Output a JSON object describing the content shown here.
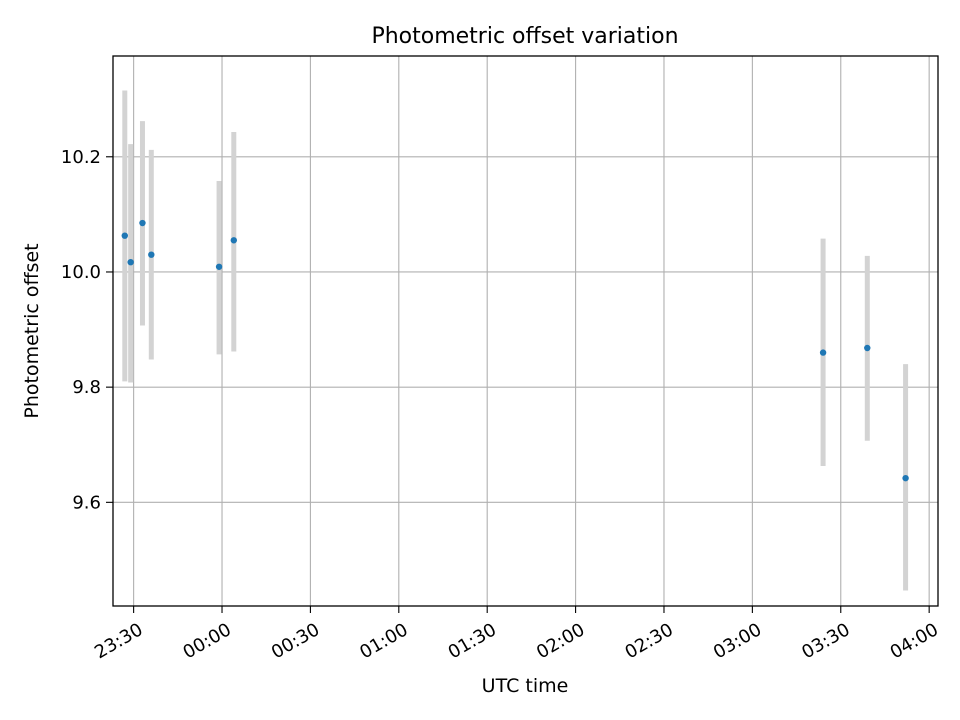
{
  "chart_data": {
    "type": "scatter",
    "title": "Photometric offset variation",
    "xlabel": "UTC time",
    "ylabel": "Photometric offset",
    "x_unit": "time of day (minutes after 23:30 shown as clock labels)",
    "xlim": [
      "23:23",
      "04:03"
    ],
    "ylim": [
      9.42,
      10.375
    ],
    "x_ticks": [
      "23:30",
      "00:00",
      "00:30",
      "01:00",
      "01:30",
      "02:00",
      "02:30",
      "03:00",
      "03:30",
      "04:00"
    ],
    "y_ticks": [
      "9.6",
      "9.8",
      "10.0",
      "10.2"
    ],
    "y_tick_values": [
      9.6,
      9.8,
      10.0,
      10.2
    ],
    "grid": true,
    "series": [
      {
        "marker_color": "#1f77b4",
        "errorbar_color": "#d3d3d3",
        "points": [
          {
            "time": "23:27",
            "y": 10.063,
            "low": 9.81,
            "high": 10.315
          },
          {
            "time": "23:29",
            "y": 10.017,
            "low": 9.808,
            "high": 10.222
          },
          {
            "time": "23:33",
            "y": 10.085,
            "low": 9.907,
            "high": 10.262
          },
          {
            "time": "23:36",
            "y": 10.03,
            "low": 9.848,
            "high": 10.212
          },
          {
            "time": "23:59",
            "y": 10.009,
            "low": 9.857,
            "high": 10.158
          },
          {
            "time": "00:04",
            "y": 10.055,
            "low": 9.862,
            "high": 10.243
          },
          {
            "time": "03:24",
            "y": 9.86,
            "low": 9.663,
            "high": 10.058
          },
          {
            "time": "03:39",
            "y": 9.868,
            "low": 9.707,
            "high": 10.028
          },
          {
            "time": "03:52",
            "y": 9.642,
            "low": 9.447,
            "high": 9.84
          }
        ]
      }
    ]
  }
}
